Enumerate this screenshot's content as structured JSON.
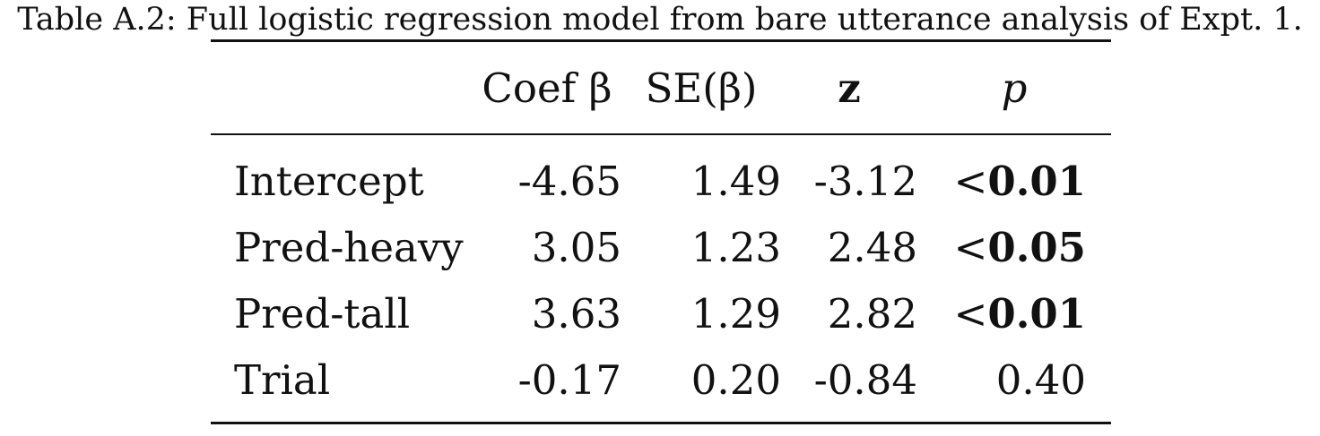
{
  "caption": "Table A.2: Full logistic regression model from bare utterance analysis of Expt. 1.",
  "headers": {
    "coef": "Coef β",
    "se": "SE(β)",
    "z": "z",
    "p": "p"
  },
  "rows": [
    {
      "term": "Intercept",
      "coef": "-4.65",
      "se": "1.49",
      "z": "-3.12",
      "p_prefix": "<",
      "p_value": "0.01",
      "p_bold": true
    },
    {
      "term": "Pred-heavy",
      "coef": "3.05",
      "se": "1.23",
      "z": "2.48",
      "p_prefix": "<",
      "p_value": "0.05",
      "p_bold": true
    },
    {
      "term": "Pred-tall",
      "coef": "3.63",
      "se": "1.29",
      "z": "2.82",
      "p_prefix": "<",
      "p_value": "0.01",
      "p_bold": true
    },
    {
      "term": "Trial",
      "coef": "-0.17",
      "se": "0.20",
      "z": "-0.84",
      "p_prefix": "",
      "p_value": "0.40",
      "p_bold": false
    }
  ]
}
